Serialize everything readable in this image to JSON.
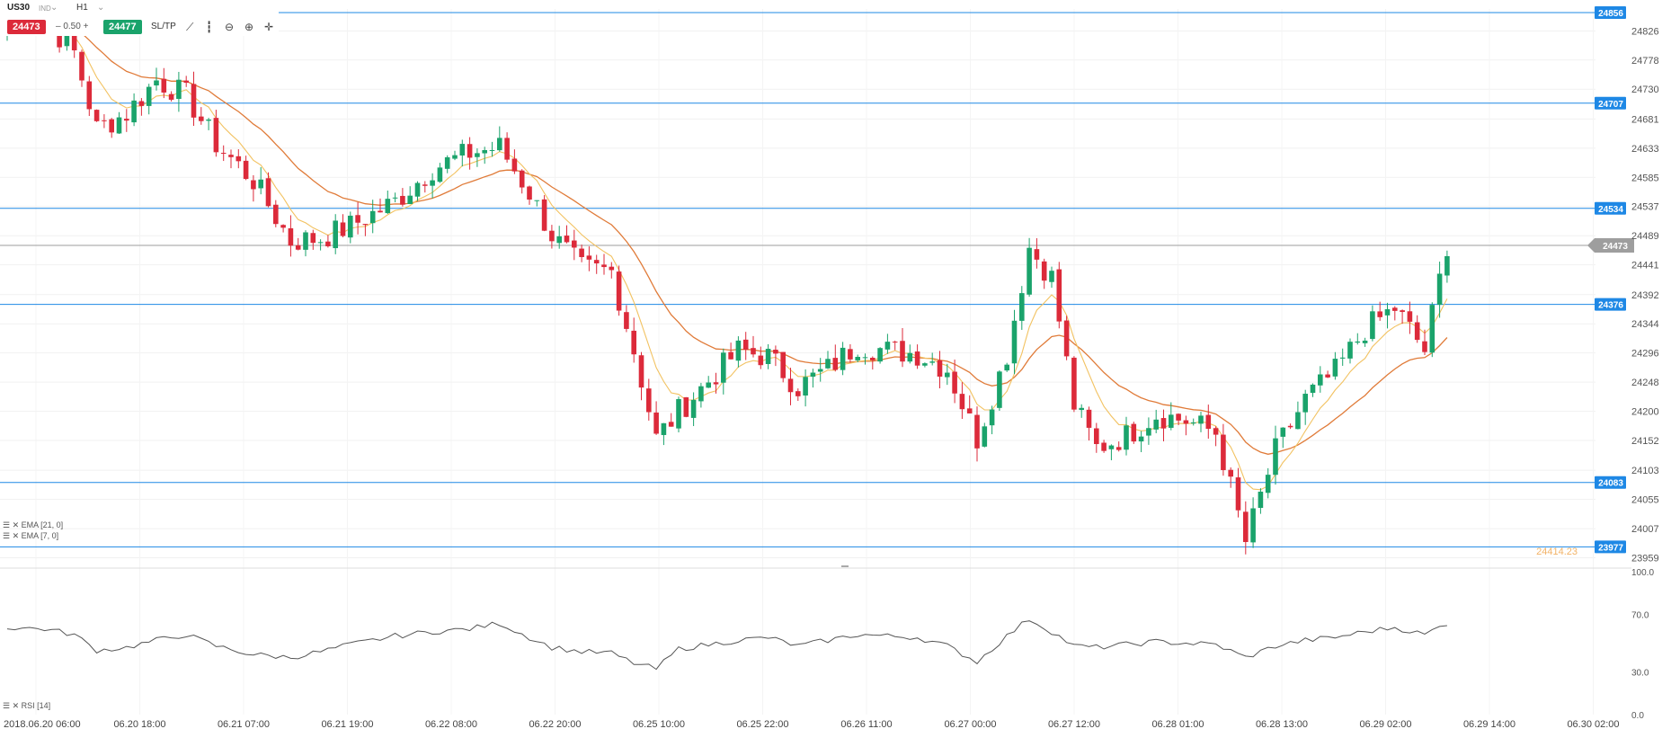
{
  "header": {
    "symbol": "US30",
    "symbol_tag": "IND",
    "timeframe": "H1",
    "sell_price": "24473",
    "lot": "0.50",
    "buy_price": "24477",
    "sltp_label": "SL/TP",
    "tools": [
      "line-chart-icon",
      "candles-icon",
      "zoom-out-icon",
      "zoom-in-icon",
      "crosshair-icon"
    ]
  },
  "indicators": {
    "ema21_label": "EMA [21, 0]",
    "ema7_label": "EMA [7, 0]",
    "rsi_label": "RSI [14]"
  },
  "colors": {
    "up": "#1aa36b",
    "down": "#dc2a3a",
    "ema21": "#e07b39",
    "ema7": "#f2c261",
    "hline": "#1e88e5",
    "current": "#9e9e9e",
    "rsi": "#555555"
  },
  "chart_data": {
    "type": "candlestick",
    "price_axis_ticks": [
      "24826",
      "24778",
      "24730",
      "24681",
      "24633",
      "24585",
      "24537",
      "24489",
      "24441",
      "24392",
      "24344",
      "24296",
      "24248",
      "24200",
      "24152",
      "24103",
      "24055",
      "24007",
      "23959"
    ],
    "price_range": [
      23945,
      24862
    ],
    "horizontal_levels": [
      "24856",
      "24707",
      "24534",
      "24376",
      "24083",
      "23977"
    ],
    "current_price": "24473",
    "hidden_label": "24414.23",
    "time_labels": [
      "2018.06.20 06:00",
      "06.20 18:00",
      "06.21 07:00",
      "06.21 19:00",
      "06.22 08:00",
      "06.22 20:00",
      "06.25 10:00",
      "06.25 22:00",
      "06.26 11:00",
      "06.27 00:00",
      "06.27 12:00",
      "06.28 01:00",
      "06.28 13:00",
      "06.29 02:00",
      "06.29 14:00",
      "06.30 02:00"
    ],
    "rsi_ticks": [
      "100.0",
      "70.0",
      "30.0",
      "0.0"
    ],
    "rsi_range": [
      0,
      100
    ],
    "anchors": [
      {
        "i": 0,
        "c": 24840
      },
      {
        "i": 5,
        "c": 24845
      },
      {
        "i": 9,
        "c": 24790
      },
      {
        "i": 12,
        "c": 24665
      },
      {
        "i": 16,
        "c": 24690
      },
      {
        "i": 20,
        "c": 24745
      },
      {
        "i": 24,
        "c": 24720
      },
      {
        "i": 28,
        "c": 24640
      },
      {
        "i": 33,
        "c": 24580
      },
      {
        "i": 38,
        "c": 24480
      },
      {
        "i": 42,
        "c": 24485
      },
      {
        "i": 46,
        "c": 24505
      },
      {
        "i": 52,
        "c": 24545
      },
      {
        "i": 57,
        "c": 24600
      },
      {
        "i": 62,
        "c": 24625
      },
      {
        "i": 66,
        "c": 24635
      },
      {
        "i": 70,
        "c": 24560
      },
      {
        "i": 73,
        "c": 24490
      },
      {
        "i": 77,
        "c": 24435
      },
      {
        "i": 81,
        "c": 24430
      },
      {
        "i": 84,
        "c": 24300
      },
      {
        "i": 87,
        "c": 24155
      },
      {
        "i": 90,
        "c": 24200
      },
      {
        "i": 94,
        "c": 24250
      },
      {
        "i": 98,
        "c": 24300
      },
      {
        "i": 102,
        "c": 24290
      },
      {
        "i": 106,
        "c": 24240
      },
      {
        "i": 110,
        "c": 24270
      },
      {
        "i": 114,
        "c": 24310
      },
      {
        "i": 118,
        "c": 24300
      },
      {
        "i": 122,
        "c": 24295
      },
      {
        "i": 126,
        "c": 24270
      },
      {
        "i": 130,
        "c": 24155
      },
      {
        "i": 134,
        "c": 24295
      },
      {
        "i": 137,
        "c": 24470
      },
      {
        "i": 140,
        "c": 24420
      },
      {
        "i": 143,
        "c": 24210
      },
      {
        "i": 146,
        "c": 24140
      },
      {
        "i": 150,
        "c": 24160
      },
      {
        "i": 154,
        "c": 24195
      },
      {
        "i": 158,
        "c": 24185
      },
      {
        "i": 162,
        "c": 24165
      },
      {
        "i": 166,
        "c": 23985
      },
      {
        "i": 170,
        "c": 24135
      },
      {
        "i": 174,
        "c": 24220
      },
      {
        "i": 178,
        "c": 24265
      },
      {
        "i": 182,
        "c": 24335
      },
      {
        "i": 186,
        "c": 24370
      },
      {
        "i": 190,
        "c": 24300
      },
      {
        "i": 193,
        "c": 24475
      }
    ],
    "rsi_anchors": [
      {
        "i": 0,
        "v": 61
      },
      {
        "i": 5,
        "v": 60
      },
      {
        "i": 9,
        "v": 56
      },
      {
        "i": 12,
        "v": 45
      },
      {
        "i": 16,
        "v": 47
      },
      {
        "i": 20,
        "v": 52
      },
      {
        "i": 24,
        "v": 56
      },
      {
        "i": 28,
        "v": 48
      },
      {
        "i": 33,
        "v": 42
      },
      {
        "i": 38,
        "v": 40
      },
      {
        "i": 42,
        "v": 44
      },
      {
        "i": 46,
        "v": 49
      },
      {
        "i": 52,
        "v": 55
      },
      {
        "i": 57,
        "v": 58
      },
      {
        "i": 62,
        "v": 60
      },
      {
        "i": 66,
        "v": 64
      },
      {
        "i": 70,
        "v": 54
      },
      {
        "i": 73,
        "v": 47
      },
      {
        "i": 77,
        "v": 44
      },
      {
        "i": 81,
        "v": 43
      },
      {
        "i": 84,
        "v": 36
      },
      {
        "i": 87,
        "v": 32
      },
      {
        "i": 90,
        "v": 46
      },
      {
        "i": 94,
        "v": 49
      },
      {
        "i": 98,
        "v": 52
      },
      {
        "i": 102,
        "v": 54
      },
      {
        "i": 106,
        "v": 48
      },
      {
        "i": 110,
        "v": 52
      },
      {
        "i": 114,
        "v": 56
      },
      {
        "i": 118,
        "v": 55
      },
      {
        "i": 122,
        "v": 54
      },
      {
        "i": 126,
        "v": 48
      },
      {
        "i": 130,
        "v": 37
      },
      {
        "i": 134,
        "v": 55
      },
      {
        "i": 137,
        "v": 67
      },
      {
        "i": 140,
        "v": 58
      },
      {
        "i": 143,
        "v": 48
      },
      {
        "i": 146,
        "v": 47
      },
      {
        "i": 150,
        "v": 49
      },
      {
        "i": 154,
        "v": 51
      },
      {
        "i": 158,
        "v": 50
      },
      {
        "i": 162,
        "v": 49
      },
      {
        "i": 166,
        "v": 40
      },
      {
        "i": 170,
        "v": 48
      },
      {
        "i": 174,
        "v": 52
      },
      {
        "i": 178,
        "v": 54
      },
      {
        "i": 182,
        "v": 58
      },
      {
        "i": 186,
        "v": 61
      },
      {
        "i": 190,
        "v": 56
      },
      {
        "i": 193,
        "v": 64
      }
    ]
  }
}
